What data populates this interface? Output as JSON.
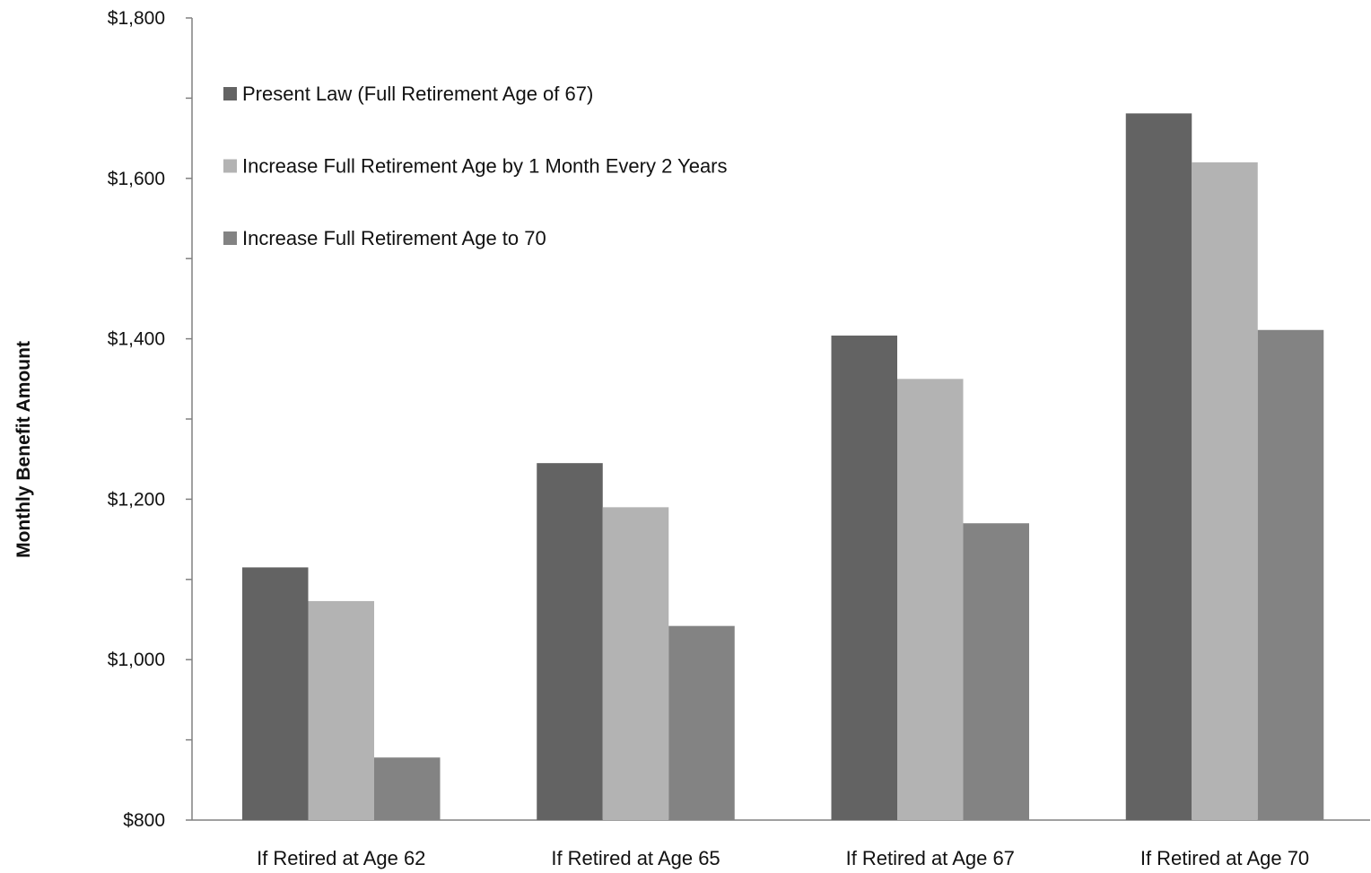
{
  "chart_data": {
    "type": "bar",
    "title": "",
    "xlabel": "",
    "ylabel": "Monthly Benefit Amount",
    "ylim": [
      800,
      1800
    ],
    "ytick_values": [
      800,
      1000,
      1200,
      1400,
      1600,
      1800
    ],
    "ytick_labels": [
      "$800",
      "$1,000",
      "$1,200",
      "$1,400",
      "$1,600",
      "$1,800"
    ],
    "minor_tick_step": 100,
    "grid": false,
    "legend_position": "top-left",
    "categories": [
      "If Retired at Age 62",
      "If Retired at Age 65",
      "If Retired at Age 67",
      "If Retired at Age 70"
    ],
    "series": [
      {
        "name": "Present Law (Full Retirement Age of 67)",
        "color": "#636363",
        "values": [
          1115,
          1245,
          1404,
          1681
        ]
      },
      {
        "name": "Increase Full Retirement Age by 1 Month Every 2 Years",
        "color": "#b3b3b3",
        "values": [
          1073,
          1190,
          1350,
          1620
        ]
      },
      {
        "name": "Increase Full Retirement Age to 70",
        "color": "#838383",
        "values": [
          878,
          1042,
          1170,
          1411
        ]
      }
    ]
  }
}
